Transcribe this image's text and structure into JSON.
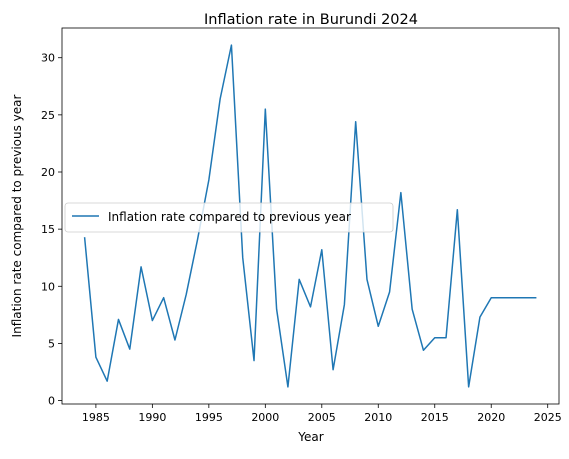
{
  "chart_data": {
    "type": "line",
    "title": "Inflation rate in Burundi 2024",
    "xlabel": "Year",
    "ylabel": "Inflation rate compared to previous year",
    "xlim": [
      1982,
      2026
    ],
    "ylim": [
      -0.3,
      32.6
    ],
    "xticks": [
      1985,
      1990,
      1995,
      2000,
      2005,
      2010,
      2015,
      2020,
      2025
    ],
    "yticks": [
      0,
      5,
      10,
      15,
      20,
      25,
      30
    ],
    "grid": false,
    "legend": {
      "position": "center-left"
    },
    "series": [
      {
        "name": "Inflation rate compared to previous year",
        "color": "#1f77b4",
        "x": [
          1984,
          1985,
          1986,
          1987,
          1988,
          1989,
          1990,
          1991,
          1992,
          1993,
          1994,
          1995,
          1996,
          1997,
          1998,
          1999,
          2000,
          2001,
          2002,
          2003,
          2004,
          2005,
          2006,
          2007,
          2008,
          2009,
          2010,
          2011,
          2012,
          2013,
          2014,
          2015,
          2016,
          2017,
          2018,
          2019,
          2020,
          2021,
          2022,
          2023,
          2024
        ],
        "y": [
          14.3,
          3.8,
          1.7,
          7.1,
          4.5,
          11.7,
          7.0,
          9.0,
          5.3,
          9.3,
          14.1,
          19.3,
          26.4,
          31.1,
          12.5,
          3.5,
          25.5,
          8.0,
          1.2,
          10.6,
          8.2,
          13.2,
          2.7,
          8.4,
          24.4,
          10.6,
          6.5,
          9.5,
          18.2,
          8.0,
          4.4,
          5.5,
          5.5,
          16.7,
          1.2,
          7.3,
          9.0,
          9.0,
          9.0,
          9.0,
          9.0
        ]
      }
    ]
  }
}
